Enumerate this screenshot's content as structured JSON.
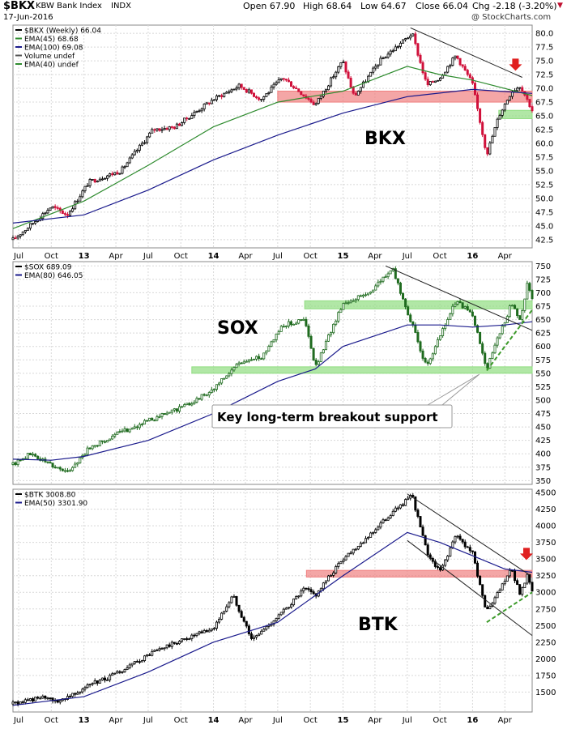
{
  "header": {
    "symbol": "$BKX",
    "name": "KBW Bank Index",
    "exchange": "INDX",
    "date": "17-Jun-2016",
    "open": "Open 67.90",
    "high": "High 68.64",
    "low": "Low 64.67",
    "close": "Close 66.04",
    "change": "Chg -2.18 (-3.20%)",
    "change_marker": "▼",
    "watermark": "@ StockCharts.com"
  },
  "colors": {
    "ema_green": "#2e8b2e",
    "ema_blue": "#1a1a8c",
    "resistance_red": "#f08080",
    "support_green": "#90dd80",
    "arrow_red": "#e02020",
    "trend_green": "#3c9a2a"
  },
  "x_axis": {
    "ticks": [
      "Jul",
      "Oct",
      "13",
      "Apr",
      "Jul",
      "Oct",
      "14",
      "Apr",
      "Jul",
      "Oct",
      "15",
      "Apr",
      "Jul",
      "Oct",
      "16",
      "Apr"
    ]
  },
  "chart_data": [
    {
      "type": "candlestick",
      "title": "BKX",
      "legend": [
        "$BKX (Weekly) 66.04",
        "EMA(45) 68.68",
        "EMA(100) 69.08",
        "Volume undef",
        "EMA(40) undef"
      ],
      "ylim": [
        41,
        81.5
      ],
      "yticks": [
        42.5,
        45.0,
        47.5,
        50.0,
        52.5,
        55.0,
        57.5,
        60.0,
        62.5,
        65.0,
        67.5,
        70.0,
        72.5,
        75.0,
        77.5,
        80.0
      ],
      "yticklabels": [
        "42.5",
        "45.0",
        "47.5",
        "50.0",
        "52.5",
        "55.0",
        "57.5",
        "60.0",
        "62.5",
        "65.0",
        "67.5",
        "70.0",
        "72.5",
        "75.0",
        "77.5",
        "80.0"
      ],
      "x_range": [
        "2012-06-15",
        "2016-06-17"
      ],
      "key_points": [
        {
          "date": "2012-06-15",
          "value": 42.5
        },
        {
          "date": "2012-08-01",
          "value": 45.0
        },
        {
          "date": "2012-10-01",
          "value": 48.5
        },
        {
          "date": "2012-11-15",
          "value": 47.0
        },
        {
          "date": "2013-01-15",
          "value": 53.0
        },
        {
          "date": "2013-04-15",
          "value": 55.0
        },
        {
          "date": "2013-07-15",
          "value": 62.5
        },
        {
          "date": "2013-09-15",
          "value": 63.0
        },
        {
          "date": "2013-12-31",
          "value": 68.0
        },
        {
          "date": "2014-03-15",
          "value": 70.5
        },
        {
          "date": "2014-05-15",
          "value": 68.0
        },
        {
          "date": "2014-07-15",
          "value": 72.0
        },
        {
          "date": "2014-10-15",
          "value": 67.0
        },
        {
          "date": "2014-12-31",
          "value": 75.0
        },
        {
          "date": "2015-02-01",
          "value": 68.5
        },
        {
          "date": "2015-04-15",
          "value": 75.0
        },
        {
          "date": "2015-07-15",
          "value": 80.0
        },
        {
          "date": "2015-08-25",
          "value": 70.5
        },
        {
          "date": "2015-10-01",
          "value": 72.0
        },
        {
          "date": "2015-11-15",
          "value": 76.0
        },
        {
          "date": "2015-12-31",
          "value": 71.0
        },
        {
          "date": "2016-02-10",
          "value": 58.0
        },
        {
          "date": "2016-03-15",
          "value": 65.0
        },
        {
          "date": "2016-04-20",
          "value": 69.5
        },
        {
          "date": "2016-05-15",
          "value": 70.5
        },
        {
          "date": "2016-06-17",
          "value": 66.04
        }
      ],
      "ema_long": [
        {
          "date": "2012-06-15",
          "value": 45.5
        },
        {
          "date": "2013-01-01",
          "value": 47.0
        },
        {
          "date": "2013-07-01",
          "value": 51.5
        },
        {
          "date": "2014-01-01",
          "value": 57.0
        },
        {
          "date": "2014-07-01",
          "value": 61.5
        },
        {
          "date": "2015-01-01",
          "value": 65.5
        },
        {
          "date": "2015-07-01",
          "value": 68.5
        },
        {
          "date": "2016-01-01",
          "value": 69.8
        },
        {
          "date": "2016-06-17",
          "value": 69.08
        }
      ],
      "ema_short": [
        {
          "date": "2012-06-15",
          "value": 44.5
        },
        {
          "date": "2013-01-01",
          "value": 49.5
        },
        {
          "date": "2013-07-01",
          "value": 56.0
        },
        {
          "date": "2014-01-01",
          "value": 63.0
        },
        {
          "date": "2014-07-01",
          "value": 67.5
        },
        {
          "date": "2015-01-01",
          "value": 69.5
        },
        {
          "date": "2015-07-01",
          "value": 74.0
        },
        {
          "date": "2015-10-01",
          "value": 72.5
        },
        {
          "date": "2016-01-01",
          "value": 71.5
        },
        {
          "date": "2016-06-17",
          "value": 68.68
        }
      ],
      "resistance_zone": {
        "x0": "2014-07-01",
        "x1": "2016-06-17",
        "y0": 67.5,
        "y1": 69.5
      },
      "support_zone": {
        "x0": "2016-03-15",
        "x1": "2016-06-17",
        "y0": 64.5,
        "y1": 66.0
      },
      "trendline": [
        {
          "date": "2015-07-10",
          "value": 81.0
        },
        {
          "date": "2016-05-20",
          "value": 72.0
        }
      ],
      "arrow": {
        "date": "2016-05-01",
        "value": 73.5
      }
    },
    {
      "type": "candlestick",
      "title": "SOX",
      "legend": [
        "$SOX 689.09",
        "EMA(80) 646.05"
      ],
      "annotation": "Key long-term breakout support",
      "ylim": [
        343,
        758
      ],
      "yticks": [
        350,
        375,
        400,
        425,
        450,
        475,
        500,
        525,
        550,
        575,
        600,
        625,
        650,
        675,
        700,
        725,
        750
      ],
      "yticklabels": [
        "350",
        "375",
        "400",
        "425",
        "450",
        "475",
        "500",
        "525",
        "550",
        "575",
        "600",
        "625",
        "650",
        "675",
        "700",
        "725",
        "750"
      ],
      "x_range": [
        "2012-06-15",
        "2016-06-17"
      ],
      "key_points": [
        {
          "date": "2012-06-15",
          "value": 380
        },
        {
          "date": "2012-08-01",
          "value": 400
        },
        {
          "date": "2012-10-01",
          "value": 380
        },
        {
          "date": "2012-11-15",
          "value": 365
        },
        {
          "date": "2013-01-15",
          "value": 410
        },
        {
          "date": "2013-04-15",
          "value": 440
        },
        {
          "date": "2013-07-15",
          "value": 465
        },
        {
          "date": "2013-10-15",
          "value": 490
        },
        {
          "date": "2013-12-31",
          "value": 520
        },
        {
          "date": "2014-03-15",
          "value": 570
        },
        {
          "date": "2014-05-15",
          "value": 580
        },
        {
          "date": "2014-07-15",
          "value": 640
        },
        {
          "date": "2014-09-15",
          "value": 650
        },
        {
          "date": "2014-10-15",
          "value": 560
        },
        {
          "date": "2014-12-31",
          "value": 680
        },
        {
          "date": "2015-03-15",
          "value": 700
        },
        {
          "date": "2015-05-20",
          "value": 745
        },
        {
          "date": "2015-07-15",
          "value": 640
        },
        {
          "date": "2015-08-25",
          "value": 560
        },
        {
          "date": "2015-10-15",
          "value": 640
        },
        {
          "date": "2015-11-15",
          "value": 685
        },
        {
          "date": "2015-12-31",
          "value": 660
        },
        {
          "date": "2016-02-10",
          "value": 560
        },
        {
          "date": "2016-03-15",
          "value": 620
        },
        {
          "date": "2016-04-20",
          "value": 680
        },
        {
          "date": "2016-05-15",
          "value": 650
        },
        {
          "date": "2016-06-03",
          "value": 715
        },
        {
          "date": "2016-06-17",
          "value": 689.09
        }
      ],
      "ema_long": [
        {
          "date": "2012-06-15",
          "value": 390
        },
        {
          "date": "2012-10-01",
          "value": 388
        },
        {
          "date": "2013-01-01",
          "value": 395
        },
        {
          "date": "2013-07-01",
          "value": 425
        },
        {
          "date": "2014-01-01",
          "value": 475
        },
        {
          "date": "2014-07-01",
          "value": 535
        },
        {
          "date": "2014-10-15",
          "value": 558
        },
        {
          "date": "2015-01-01",
          "value": 600
        },
        {
          "date": "2015-07-01",
          "value": 640
        },
        {
          "date": "2015-10-01",
          "value": 640
        },
        {
          "date": "2016-01-01",
          "value": 636
        },
        {
          "date": "2016-04-01",
          "value": 640
        },
        {
          "date": "2016-06-17",
          "value": 646.05
        }
      ],
      "resistance_zone": {
        "x0": "2014-09-15",
        "x1": "2016-06-17",
        "y0": 670,
        "y1": 685
      },
      "support_zone": {
        "x0": "2013-11-01",
        "x1": "2016-06-17",
        "y0": 550,
        "y1": 562
      },
      "trendline": [
        {
          "date": "2015-05-01",
          "value": 750
        },
        {
          "date": "2016-06-17",
          "value": 630
        }
      ],
      "trendline_dashed": [
        {
          "date": "2016-02-10",
          "value": 555
        },
        {
          "date": "2016-06-17",
          "value": 668
        }
      ]
    },
    {
      "type": "candlestick",
      "title": "BTK",
      "legend": [
        "$BTK 3008.80",
        "EMA(50) 3301.90"
      ],
      "ylim": [
        1200,
        4550
      ],
      "yticks": [
        1500,
        1750,
        2000,
        2250,
        2500,
        2750,
        3000,
        3250,
        3500,
        3750,
        4000,
        4250,
        4500
      ],
      "yticklabels": [
        "1500",
        "1750",
        "2000",
        "2250",
        "2500",
        "2750",
        "3000",
        "3250",
        "3500",
        "3750",
        "4000",
        "4250",
        "4500"
      ],
      "x_range": [
        "2012-06-15",
        "2016-06-17"
      ],
      "key_points": [
        {
          "date": "2012-06-15",
          "value": 1320
        },
        {
          "date": "2012-09-01",
          "value": 1420
        },
        {
          "date": "2012-10-15",
          "value": 1350
        },
        {
          "date": "2013-01-15",
          "value": 1600
        },
        {
          "date": "2013-04-15",
          "value": 1800
        },
        {
          "date": "2013-07-15",
          "value": 2100
        },
        {
          "date": "2013-10-15",
          "value": 2300
        },
        {
          "date": "2013-12-31",
          "value": 2450
        },
        {
          "date": "2014-02-25",
          "value": 2950
        },
        {
          "date": "2014-04-20",
          "value": 2280
        },
        {
          "date": "2014-07-15",
          "value": 2700
        },
        {
          "date": "2014-09-15",
          "value": 3050
        },
        {
          "date": "2014-10-15",
          "value": 2950
        },
        {
          "date": "2014-12-31",
          "value": 3500
        },
        {
          "date": "2015-03-15",
          "value": 3850
        },
        {
          "date": "2015-05-20",
          "value": 4200
        },
        {
          "date": "2015-07-15",
          "value": 4450
        },
        {
          "date": "2015-08-25",
          "value": 3600
        },
        {
          "date": "2015-10-01",
          "value": 3300
        },
        {
          "date": "2015-11-15",
          "value": 3850
        },
        {
          "date": "2015-12-31",
          "value": 3600
        },
        {
          "date": "2016-02-10",
          "value": 2700
        },
        {
          "date": "2016-03-15",
          "value": 3000
        },
        {
          "date": "2016-04-20",
          "value": 3350
        },
        {
          "date": "2016-05-15",
          "value": 2950
        },
        {
          "date": "2016-06-03",
          "value": 3300
        },
        {
          "date": "2016-06-17",
          "value": 3008.8
        }
      ],
      "ema_long": [
        {
          "date": "2012-06-15",
          "value": 1300
        },
        {
          "date": "2013-01-01",
          "value": 1430
        },
        {
          "date": "2013-07-01",
          "value": 1800
        },
        {
          "date": "2014-01-01",
          "value": 2250
        },
        {
          "date": "2014-07-01",
          "value": 2550
        },
        {
          "date": "2015-01-01",
          "value": 3250
        },
        {
          "date": "2015-07-01",
          "value": 3900
        },
        {
          "date": "2015-10-01",
          "value": 3750
        },
        {
          "date": "2016-01-01",
          "value": 3550
        },
        {
          "date": "2016-04-01",
          "value": 3350
        },
        {
          "date": "2016-06-17",
          "value": 3301.9
        }
      ],
      "resistance_zone": {
        "x0": "2014-09-20",
        "x1": "2016-06-17",
        "y0": 3230,
        "y1": 3330
      },
      "trendline": [
        {
          "date": "2015-07-01",
          "value": 4480
        },
        {
          "date": "2016-06-10",
          "value": 3260
        }
      ],
      "trendline_lower": [
        {
          "date": "2015-07-01",
          "value": 3780
        },
        {
          "date": "2016-06-17",
          "value": 2350
        }
      ],
      "trendline_dashed": [
        {
          "date": "2016-02-10",
          "value": 2550
        },
        {
          "date": "2016-06-17",
          "value": 3000
        }
      ],
      "arrow": {
        "date": "2016-06-01",
        "value": 3510
      }
    }
  ]
}
